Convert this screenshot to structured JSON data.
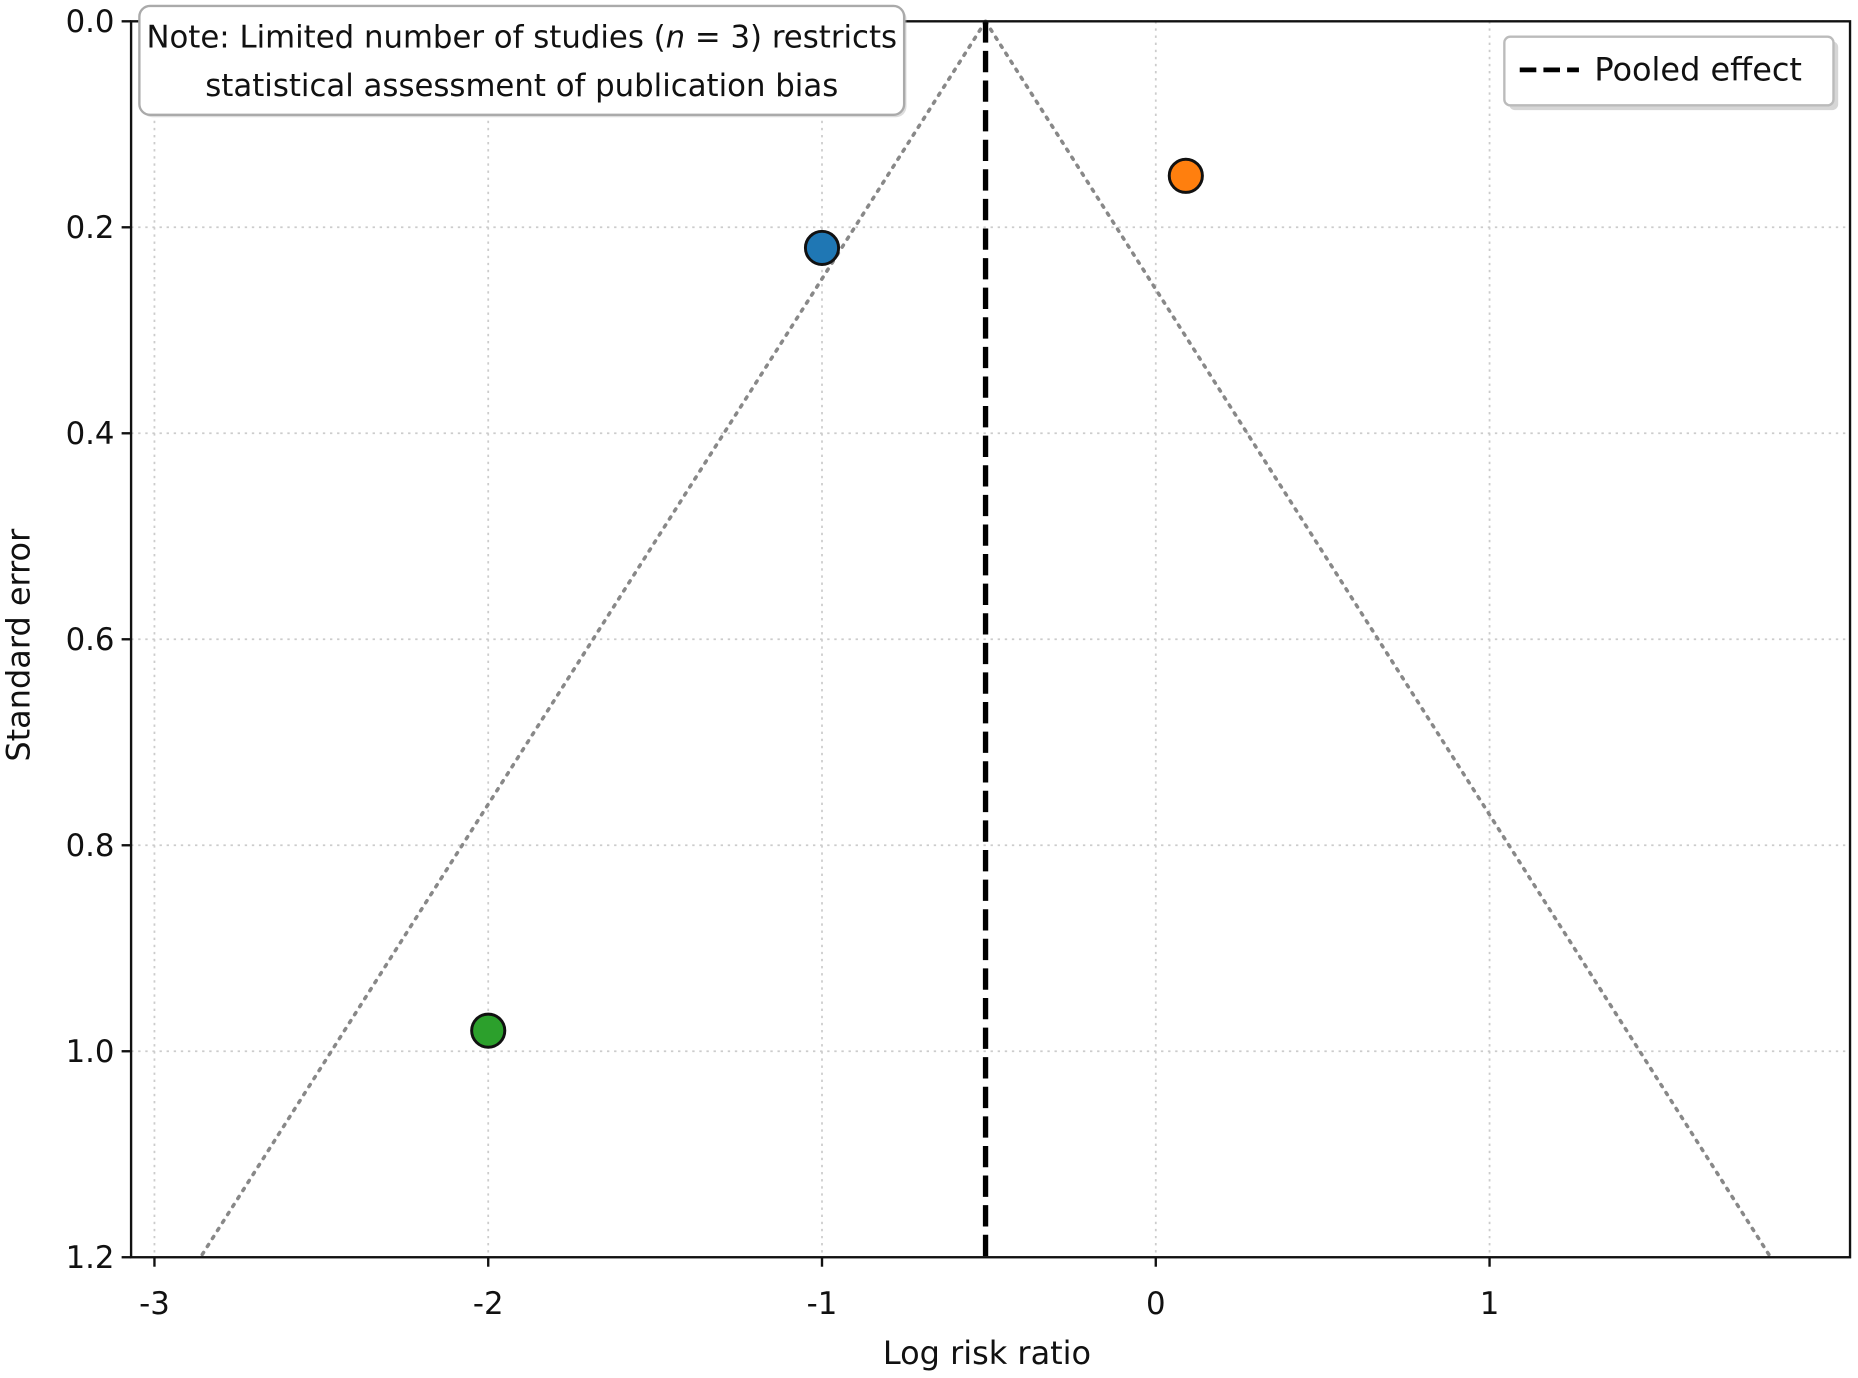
{
  "chart_data": {
    "type": "scatter",
    "title": "",
    "xlabel": "Log risk ratio",
    "ylabel": "Standard error",
    "xlim": [
      -3.07,
      2.08
    ],
    "ylim": [
      1.2,
      0.0
    ],
    "y_inverted": true,
    "grid": true,
    "xticks": [
      -3,
      -2,
      -1,
      0,
      1
    ],
    "xtick_labels": [
      "-3",
      "-2",
      "-1",
      "0",
      "1"
    ],
    "yticks": [
      0.0,
      0.2,
      0.4,
      0.6,
      0.8,
      1.0,
      1.2
    ],
    "ytick_labels": [
      "0.0",
      "0.2",
      "0.4",
      "0.6",
      "0.8",
      "1.0",
      "1.2"
    ],
    "points": [
      {
        "x": -1.0,
        "y": 0.22,
        "color": "#1f77b4"
      },
      {
        "x": 0.09,
        "y": 0.15,
        "color": "#ff7f0e"
      },
      {
        "x": -2.0,
        "y": 0.98,
        "color": "#2ca02c"
      }
    ],
    "pooled_effect": -0.51,
    "funnel_multiplier": 1.96,
    "legend": {
      "position": "top-right",
      "entries": [
        {
          "label": "Pooled effect",
          "style": "dashed",
          "color": "#000000"
        }
      ]
    },
    "annotation": {
      "line1": "Note: Limited number of studies (",
      "italic": "n",
      "line1_end": " = 3) restricts",
      "line2": "statistical assessment of publication bias"
    }
  }
}
